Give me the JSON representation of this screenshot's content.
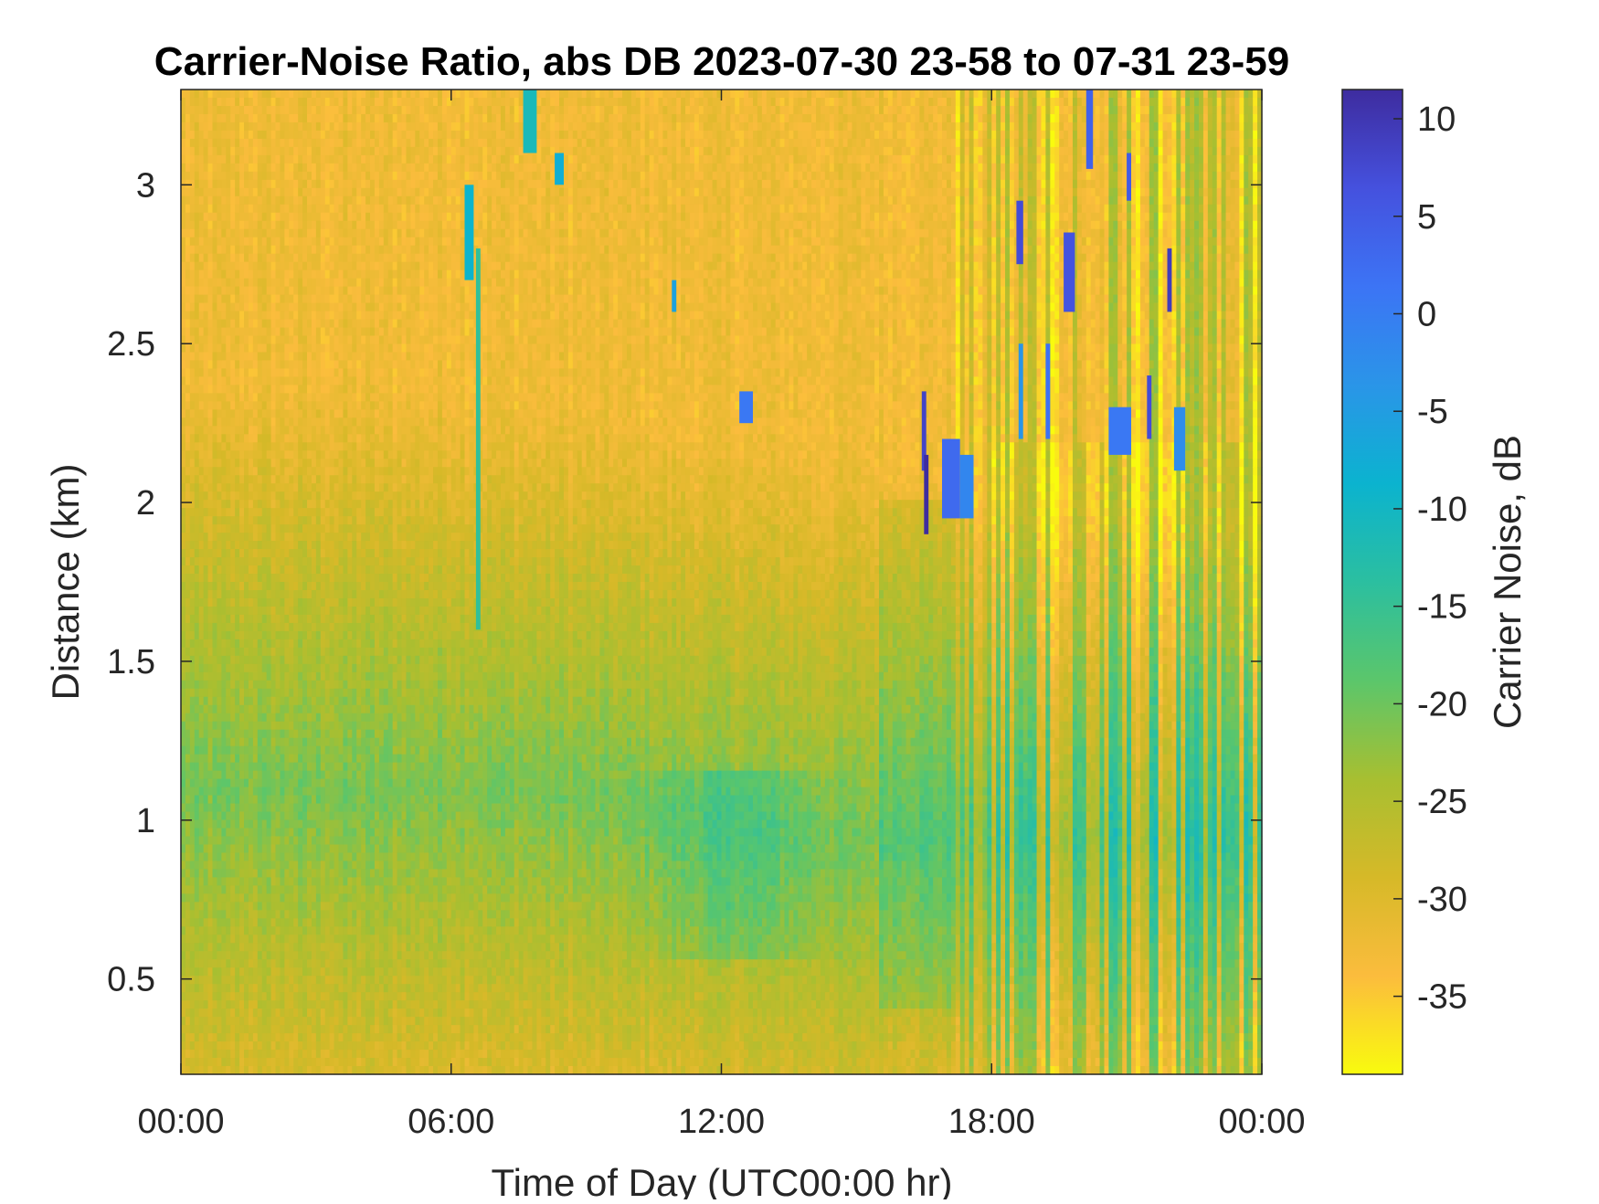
{
  "chart_data": {
    "type": "heatmap",
    "title": "Carrier-Noise Ratio, abs DB 2023-07-30 23-58 to 07-31 23-59",
    "xlabel": "Time of Day (UTC00:00 hr)",
    "ylabel": "Distance (km)",
    "colorbar_label": "Carrier Noise, dB",
    "x_unit": "hours",
    "xlim": [
      0,
      24
    ],
    "ylim": [
      0.2,
      3.3
    ],
    "clim": [
      -39,
      11.5
    ],
    "grid": false,
    "x_ticks": [
      {
        "value": 0,
        "label": "00:00"
      },
      {
        "value": 6,
        "label": "06:00"
      },
      {
        "value": 12,
        "label": "12:00"
      },
      {
        "value": 18,
        "label": "18:00"
      },
      {
        "value": 24,
        "label": "00:00"
      }
    ],
    "y_ticks": [
      {
        "value": 0.5,
        "label": "0.5"
      },
      {
        "value": 1,
        "label": "1"
      },
      {
        "value": 1.5,
        "label": "1.5"
      },
      {
        "value": 2,
        "label": "2"
      },
      {
        "value": 2.5,
        "label": "2.5"
      },
      {
        "value": 3,
        "label": "3"
      }
    ],
    "colorbar_ticks": [
      {
        "value": 10,
        "label": "10"
      },
      {
        "value": 5,
        "label": "5"
      },
      {
        "value": 0,
        "label": "0"
      },
      {
        "value": -5,
        "label": "-5"
      },
      {
        "value": -10,
        "label": "-10"
      },
      {
        "value": -15,
        "label": "-15"
      },
      {
        "value": -20,
        "label": "-20"
      },
      {
        "value": -25,
        "label": "-25"
      },
      {
        "value": -30,
        "label": "-30"
      },
      {
        "value": -35,
        "label": "-35"
      }
    ],
    "colormap": "parula (reversed: yellow at low dB, dark blue at high dB)",
    "colormap_stops": [
      "#f9fb0e",
      "#fbbc3d",
      "#d6b928",
      "#a7bf31",
      "#5bc66b",
      "#2bbfa0",
      "#0bb3cf",
      "#2a95e8",
      "#3c74f5",
      "#4551de",
      "#3e2c9f"
    ],
    "features": [
      "Background mostly -28 to -32 dB (orange) above about 2 km",
      "Boundary layer band near -20 dB (green) between 0.5 and 1.6 km until about 16:00",
      "Strongest region near 11:00-14:00 around 0.7-1.0 km (about -15 dB)",
      "Cloud returns up to +10 dB (dark blue) between 16:30 and 22:30 at 2.0-3.3 km",
      "Vertical streaks after 17:30 alternating -20 and -30 dB"
    ]
  }
}
